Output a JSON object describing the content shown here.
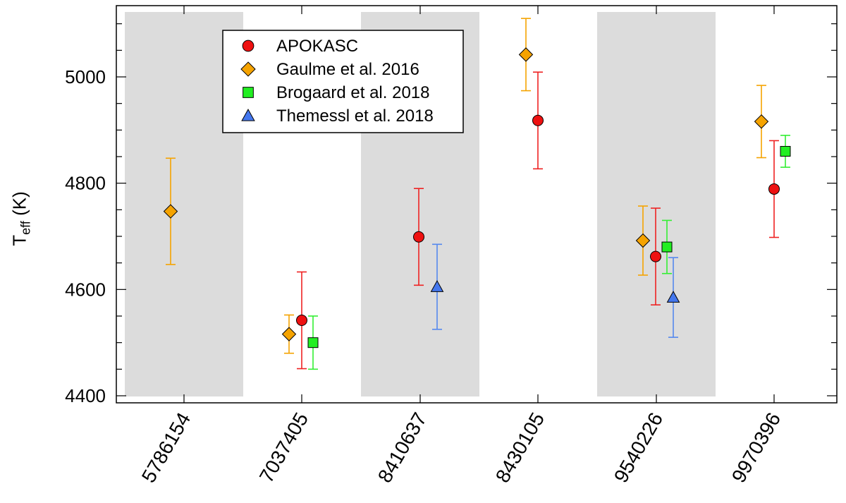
{
  "chart_data": {
    "type": "scatter",
    "title": "",
    "xlabel": "",
    "ylabel": "T",
    "ylabel_subscript": "eff",
    "ylabel_unit": "(K)",
    "ylim": [
      4400,
      5130
    ],
    "yticks": [
      4400,
      4600,
      4800,
      5000
    ],
    "ytick_labels": [
      "4400",
      "4600",
      "4800",
      "5000"
    ],
    "categories": [
      "5786154",
      "7037405",
      "8410637",
      "8430105",
      "9540226",
      "9970396"
    ],
    "shaded_categories": [
      "5786154",
      "8410637",
      "9540226"
    ],
    "legend_position": "top-left",
    "series": [
      {
        "name": "APOKASC",
        "marker": "circle",
        "color": "#ee1111",
        "points": [
          {
            "category": "7037405",
            "value": 4542,
            "err": 91
          },
          {
            "category": "8410637",
            "value": 4699,
            "err": 91
          },
          {
            "category": "8430105",
            "value": 4918,
            "err": 91
          },
          {
            "category": "9540226",
            "value": 4662,
            "err": 91
          },
          {
            "category": "9970396",
            "value": 4789,
            "err": 91
          }
        ]
      },
      {
        "name": "Gaulme et al. 2016",
        "marker": "diamond",
        "color": "#f5a300",
        "points": [
          {
            "category": "5786154",
            "value": 4747,
            "err": 100
          },
          {
            "category": "7037405",
            "value": 4516,
            "err": 36
          },
          {
            "category": "8430105",
            "value": 5042,
            "err": 68
          },
          {
            "category": "9540226",
            "value": 4692,
            "err": 65
          },
          {
            "category": "9970396",
            "value": 4916,
            "err": 68
          }
        ]
      },
      {
        "name": "Brogaard et al. 2018",
        "marker": "square",
        "color": "#22ee22",
        "points": [
          {
            "category": "7037405",
            "value": 4500,
            "err": 50
          },
          {
            "category": "9540226",
            "value": 4680,
            "err": 50
          },
          {
            "category": "9970396",
            "value": 4860,
            "err": 30
          }
        ]
      },
      {
        "name": "Themessl et al. 2018",
        "marker": "triangle",
        "color": "#4477ee",
        "points": [
          {
            "category": "8410637",
            "value": 4605,
            "err": 80
          },
          {
            "category": "9540226",
            "value": 4585,
            "err": 75
          }
        ]
      }
    ]
  }
}
